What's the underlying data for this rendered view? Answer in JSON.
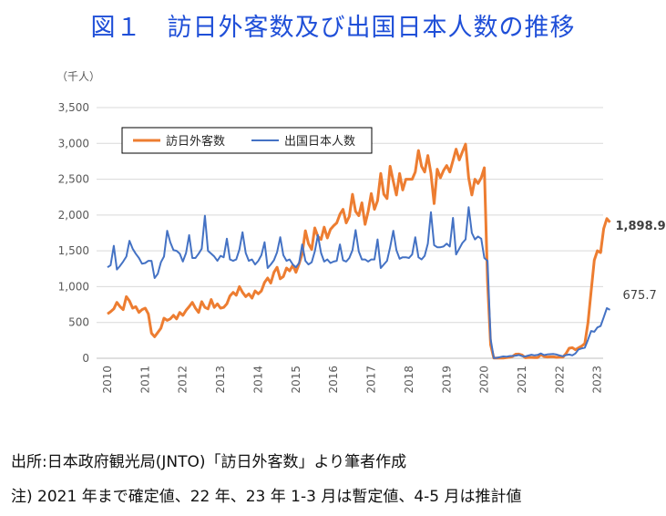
{
  "title": "図１　訪日外客数及び出国日本人数の推移",
  "source": "出所:日本政府観光局(JNTO)「訪日外客数」より筆者作成",
  "note": "注) 2021 年まで確定値、22 年、23 年 1-3 月は暫定値、4-5 月は推計値",
  "chart_data": {
    "type": "line",
    "unit_label": "（千人）",
    "ylim": [
      0,
      3500
    ],
    "yticks": [
      0,
      500,
      1000,
      1500,
      2000,
      2500,
      3000,
      3500
    ],
    "ytick_labels": [
      "0",
      "500",
      "1,000",
      "1,500",
      "2,000",
      "2,500",
      "3,000",
      "3,500"
    ],
    "xlim": [
      "2010-01",
      "2023-05"
    ],
    "xtick_labels": [
      "2010",
      "2011",
      "2012",
      "2013",
      "2014",
      "2015",
      "2016",
      "2017",
      "2018",
      "2019",
      "2020",
      "2021",
      "2022",
      "2023"
    ],
    "grid": true,
    "legend_position": "top-left",
    "series": [
      {
        "name": "訪日外客数",
        "color": "#ed7d31",
        "end_label": "1,898.9",
        "values": [
          620,
          650,
          690,
          780,
          720,
          680,
          860,
          800,
          700,
          720,
          640,
          680,
          700,
          620,
          350,
          300,
          360,
          420,
          560,
          530,
          550,
          600,
          550,
          640,
          600,
          670,
          720,
          780,
          700,
          640,
          790,
          710,
          690,
          820,
          710,
          760,
          700,
          710,
          760,
          870,
          920,
          880,
          1000,
          920,
          860,
          900,
          840,
          940,
          900,
          940,
          1060,
          1120,
          1050,
          1200,
          1270,
          1110,
          1140,
          1260,
          1220,
          1300,
          1200,
          1320,
          1460,
          1780,
          1600,
          1520,
          1820,
          1700,
          1660,
          1830,
          1680,
          1800,
          1850,
          1890,
          2010,
          2080,
          1890,
          1980,
          2290,
          2050,
          1990,
          2170,
          1870,
          2050,
          2300,
          2080,
          2200,
          2580,
          2290,
          2230,
          2680,
          2470,
          2280,
          2580,
          2350,
          2500,
          2500,
          2500,
          2600,
          2900,
          2680,
          2600,
          2830,
          2580,
          2160,
          2640,
          2520,
          2620,
          2690,
          2600,
          2760,
          2920,
          2770,
          2880,
          2990,
          2520,
          2280,
          2500,
          2440,
          2520,
          2660,
          1080,
          190,
          3,
          2,
          3,
          4,
          9,
          14,
          27,
          57,
          59,
          46,
          7,
          12,
          11,
          10,
          10,
          51,
          26,
          18,
          21,
          21,
          13,
          17,
          17,
          66,
          140,
          147,
          120,
          145,
          170,
          206,
          499,
          934,
          1370,
          1500,
          1476,
          1810,
          1950,
          1898.9
        ]
      },
      {
        "name": "出国日本人数",
        "color": "#4472c4",
        "end_label": "675.7",
        "values": [
          1270,
          1300,
          1570,
          1240,
          1290,
          1350,
          1420,
          1640,
          1530,
          1460,
          1400,
          1320,
          1330,
          1360,
          1360,
          1120,
          1180,
          1340,
          1420,
          1780,
          1620,
          1510,
          1500,
          1460,
          1350,
          1470,
          1720,
          1400,
          1400,
          1460,
          1530,
          1990,
          1500,
          1460,
          1420,
          1360,
          1430,
          1410,
          1670,
          1380,
          1360,
          1380,
          1520,
          1760,
          1470,
          1360,
          1380,
          1310,
          1360,
          1440,
          1620,
          1260,
          1310,
          1370,
          1480,
          1690,
          1440,
          1360,
          1380,
          1310,
          1270,
          1330,
          1590,
          1360,
          1310,
          1340,
          1490,
          1720,
          1470,
          1350,
          1380,
          1330,
          1350,
          1360,
          1590,
          1370,
          1350,
          1400,
          1510,
          1790,
          1490,
          1380,
          1380,
          1350,
          1380,
          1380,
          1660,
          1260,
          1310,
          1360,
          1550,
          1780,
          1510,
          1390,
          1410,
          1410,
          1400,
          1450,
          1690,
          1410,
          1380,
          1430,
          1600,
          2040,
          1580,
          1550,
          1550,
          1560,
          1600,
          1560,
          1960,
          1450,
          1530,
          1610,
          1660,
          2110,
          1750,
          1660,
          1700,
          1670,
          1400,
          1360,
          270,
          4,
          6,
          17,
          26,
          22,
          30,
          33,
          37,
          46,
          31,
          26,
          38,
          49,
          41,
          47,
          67,
          45,
          53,
          57,
          60,
          52,
          40,
          28,
          45,
          52,
          41,
          68,
          123,
          138,
          148,
          260,
          380,
          370,
          430,
          450,
          570,
          700,
          675.7
        ]
      }
    ]
  }
}
